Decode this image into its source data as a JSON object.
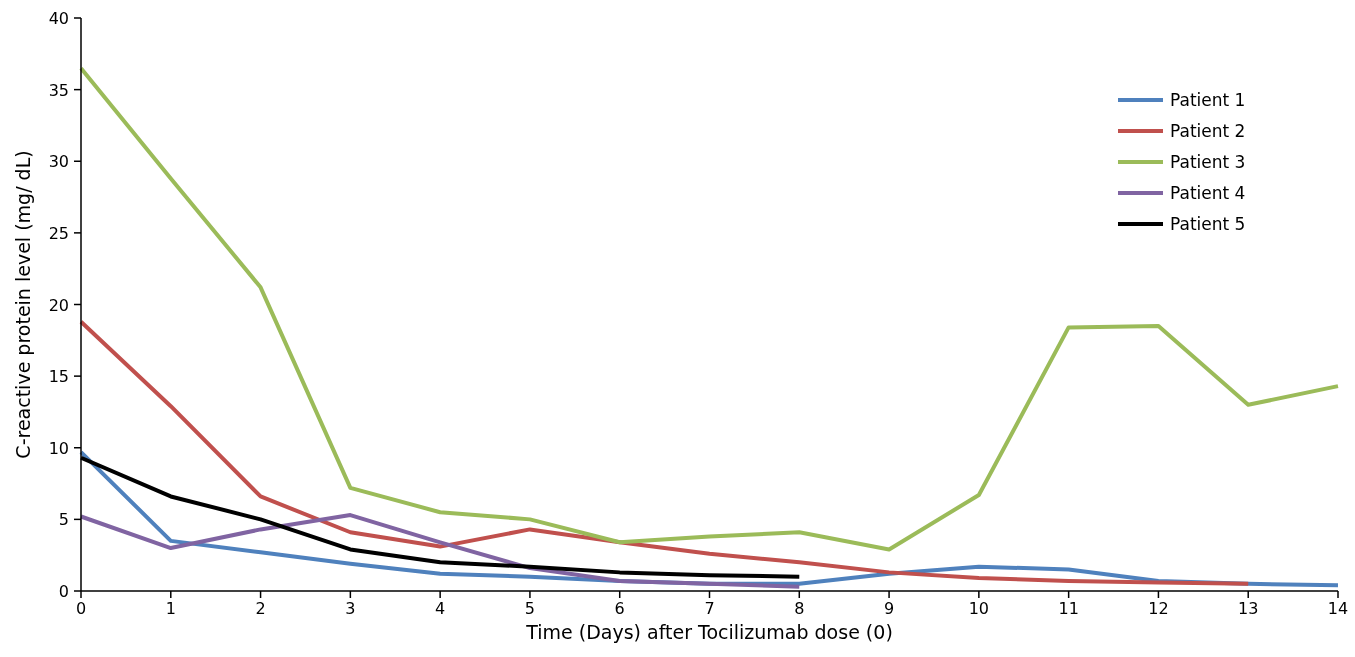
{
  "chart_data": {
    "type": "line",
    "xlabel": "Time (Days) after Tocilizumab dose (0)",
    "ylabel": "C-reactive protein level (mg/ dL)",
    "x": [
      0,
      1,
      2,
      3,
      4,
      5,
      6,
      7,
      8,
      9,
      10,
      11,
      12,
      13,
      14
    ],
    "xlim": [
      0,
      14
    ],
    "xticks": [
      0,
      1,
      2,
      3,
      4,
      5,
      6,
      7,
      8,
      9,
      10,
      11,
      12,
      13,
      14
    ],
    "ylim": [
      0,
      40
    ],
    "yticks": [
      0,
      5,
      10,
      15,
      20,
      25,
      30,
      35,
      40
    ],
    "grid": false,
    "legend": "top right",
    "marker": "none",
    "line_style": "solid",
    "series": [
      {
        "name": "Patient 1",
        "color": "#4f81bd",
        "values": [
          9.7,
          3.5,
          2.7,
          1.9,
          1.2,
          1.0,
          0.7,
          0.5,
          0.5,
          1.2,
          1.7,
          1.5,
          0.7,
          0.5,
          0.4
        ]
      },
      {
        "name": "Patient 2",
        "color": "#c0504d",
        "values": [
          18.8,
          12.9,
          6.6,
          4.1,
          3.1,
          4.3,
          3.4,
          2.6,
          2.0,
          1.3,
          0.9,
          0.7,
          0.6,
          0.5,
          null
        ]
      },
      {
        "name": "Patient 3",
        "color": "#9bbb59",
        "values": [
          36.5,
          28.8,
          21.2,
          7.2,
          5.5,
          5.0,
          3.4,
          3.8,
          4.1,
          2.9,
          6.7,
          18.4,
          18.5,
          13.0,
          14.3
        ]
      },
      {
        "name": "Patient 4",
        "color": "#8064a2",
        "values": [
          5.2,
          3.0,
          4.3,
          5.3,
          3.4,
          1.6,
          0.7,
          0.5,
          0.3,
          null,
          null,
          null,
          null,
          null,
          null
        ]
      },
      {
        "name": "Patient 5",
        "color": "#000000",
        "values": [
          9.3,
          6.6,
          5.0,
          2.9,
          2.0,
          1.7,
          1.3,
          1.1,
          1.0,
          null,
          null,
          null,
          null,
          null,
          null
        ]
      }
    ]
  }
}
